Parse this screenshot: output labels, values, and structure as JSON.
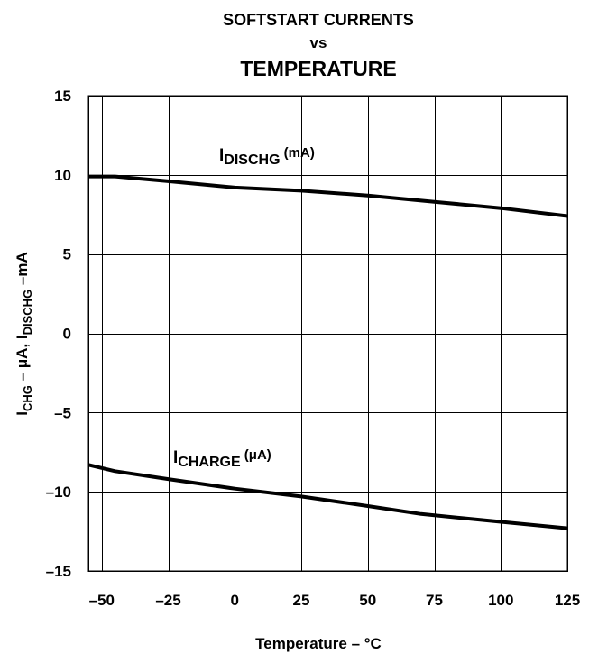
{
  "chart_data": {
    "type": "line",
    "title": {
      "line1": "SOFTSTART CURRENTS",
      "line2": "vs",
      "line3": "TEMPERATURE"
    },
    "xlabel": "Temperature – °C",
    "ylabel": {
      "p1": "I",
      "p1_sub": "CHG",
      "p2": " – μA, I",
      "p2_sub": "DISCHG",
      "p3": " –mA"
    },
    "xlim": [
      -55,
      125
    ],
    "ylim": [
      -15,
      15
    ],
    "x_ticks": [
      -50,
      -25,
      0,
      25,
      50,
      75,
      100,
      125
    ],
    "x_tick_labels": [
      "–50",
      "–25",
      "0",
      "25",
      "50",
      "75",
      "100",
      "125"
    ],
    "y_ticks": [
      15,
      10,
      5,
      0,
      -5,
      -10,
      -15
    ],
    "y_tick_labels": [
      "15",
      "10",
      "5",
      "0",
      "–5",
      "–10",
      "–15"
    ],
    "grid": true,
    "series": [
      {
        "name_main": "I",
        "name_sub": "DISCHG",
        "name_unit": " (mA)",
        "x": [
          -55,
          -45,
          -25,
          0,
          25,
          50,
          75,
          100,
          125
        ],
        "y": [
          9.9,
          9.9,
          9.6,
          9.2,
          9.0,
          8.7,
          8.3,
          7.9,
          7.4
        ]
      },
      {
        "name_main": "I",
        "name_sub": "CHARGE",
        "name_unit": " (μA)",
        "x": [
          -55,
          -45,
          -25,
          0,
          25,
          50,
          70,
          100,
          125
        ],
        "y": [
          -8.3,
          -8.7,
          -9.2,
          -9.8,
          -10.3,
          -10.9,
          -11.4,
          -11.9,
          -12.3
        ]
      }
    ],
    "line_color": "#000000",
    "background": "#ffffff"
  }
}
